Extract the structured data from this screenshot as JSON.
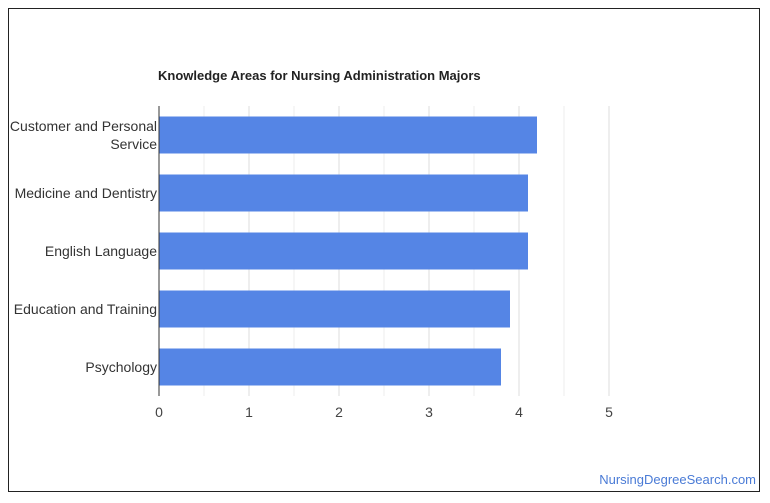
{
  "chart_data": {
    "type": "bar",
    "orientation": "horizontal",
    "title": "Knowledge Areas for Nursing Administration Majors",
    "categories": [
      [
        "Customer and Personal",
        "Service"
      ],
      [
        "Medicine and Dentistry"
      ],
      [
        "English Language"
      ],
      [
        "Education and Training"
      ],
      [
        "Psychology"
      ]
    ],
    "values": [
      4.2,
      4.1,
      4.1,
      3.9,
      3.8
    ],
    "xlim": [
      0,
      5
    ],
    "xticks": [
      "0",
      "1",
      "2",
      "3",
      "4",
      "5"
    ],
    "grid": true,
    "bar_color": "#5585e5"
  },
  "watermark": "NursingDegreeSearch.com"
}
